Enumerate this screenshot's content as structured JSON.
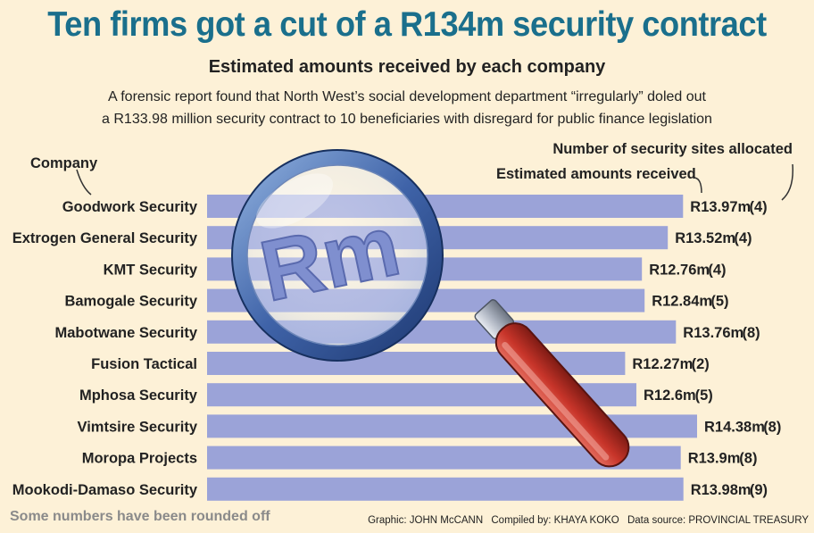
{
  "title": "Ten firms got a cut of a R134m security contract",
  "subtitle": "Estimated amounts received by each company",
  "intro_line1": "A forensic report found that North West’s social development department “irregularly” doled out",
  "intro_line2": "a R133.98 million security contract to 10 beneficiaries with disregard for public finance legislation",
  "label_sites": "Number of security sites allocated",
  "label_amounts": "Estimated amounts received",
  "label_company": "Company",
  "note": "Some numbers have been rounded off",
  "credits": {
    "graphic": "Graphic: JOHN McCANN",
    "compiled": "Compiled by: KHAYA KOKO",
    "source": "Data source: PROVINCIAL TREASURY"
  },
  "magnifier_text": "Rm",
  "colors": {
    "background": "#fdf1d7",
    "bar": "#9ba3d8",
    "title": "#1a6f8c",
    "handle": "#c8352a"
  },
  "chart_data": {
    "type": "bar",
    "orientation": "horizontal",
    "title": "Estimated amounts received by each company",
    "xlabel": "Estimated amounts received",
    "ylabel": "Company",
    "units": "Rm",
    "categories": [
      "Goodwork Security",
      "Extrogen General Security",
      "KMT Security",
      "Bamogale Security",
      "Mabotwane Security",
      "Fusion Tactical",
      "Mphosa Security",
      "Vimtsire Security",
      "Moropa Projects",
      "Mookodi-Damaso Security"
    ],
    "values": [
      13.97,
      13.52,
      12.76,
      12.84,
      13.76,
      12.27,
      12.6,
      14.38,
      13.9,
      13.98
    ],
    "value_labels": [
      "R13.97m",
      "R13.52m",
      "R12.76m",
      "R12.84m",
      "R13.76m",
      "R12.27m",
      "R12.6m",
      "R14.38m",
      "R13.9m",
      "R13.98m"
    ],
    "sites": [
      4,
      4,
      4,
      5,
      8,
      2,
      5,
      8,
      8,
      9
    ],
    "sites_labels": [
      "(4)",
      "(4)",
      "(4)",
      "(5)",
      "(8)",
      "(2)",
      "(5)",
      "(8)",
      "(8)",
      "(9)"
    ],
    "xlim": [
      0,
      14.38
    ]
  }
}
